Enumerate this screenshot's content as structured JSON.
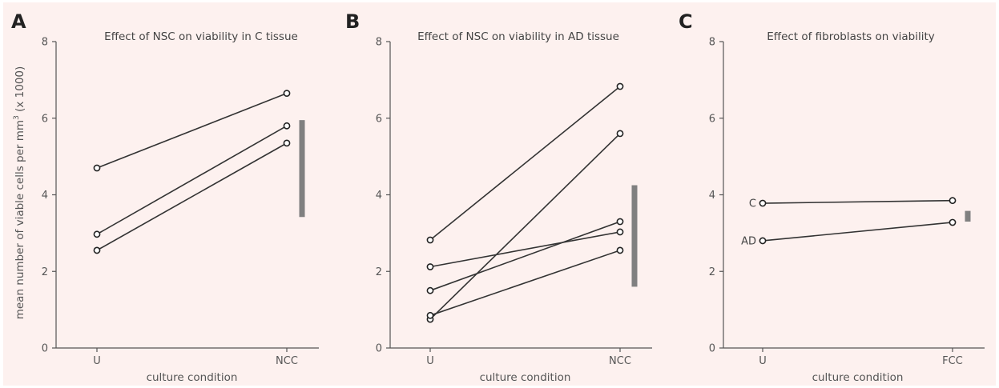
{
  "ylabel_main": "mean number of viable cells per mm",
  "ylabel_sup": "3",
  "ylabel_tail": " (x 1000)",
  "chart_data": [
    {
      "panel": "A",
      "type": "line",
      "title": "Effect of NSC on viability in C tissue",
      "xlabel": "culture condition",
      "categories": [
        "U",
        "NCC"
      ],
      "ylim": [
        0,
        8
      ],
      "yticks": [
        0,
        2,
        4,
        6,
        8
      ],
      "series": [
        {
          "values": [
            4.7,
            6.65
          ]
        },
        {
          "values": [
            2.97,
            5.8
          ]
        },
        {
          "values": [
            2.55,
            5.35
          ]
        }
      ],
      "range_bar": [
        3.42,
        5.95
      ]
    },
    {
      "panel": "B",
      "type": "line",
      "title": "Effect of NSC on viability in AD tissue",
      "xlabel": "culture condition",
      "categories": [
        "U",
        "NCC"
      ],
      "ylim": [
        0,
        8
      ],
      "yticks": [
        0,
        2,
        4,
        6,
        8
      ],
      "series": [
        {
          "values": [
            2.82,
            6.83
          ]
        },
        {
          "values": [
            0.75,
            5.6
          ]
        },
        {
          "values": [
            2.12,
            3.03
          ]
        },
        {
          "values": [
            1.5,
            3.3
          ]
        },
        {
          "values": [
            0.85,
            2.55
          ]
        }
      ],
      "range_bar": [
        1.6,
        4.25
      ]
    },
    {
      "panel": "C",
      "type": "line",
      "title": "Effect of fibroblasts on viability",
      "xlabel": "culture condition",
      "categories": [
        "U",
        "FCC"
      ],
      "ylim": [
        0,
        8
      ],
      "yticks": [
        0,
        2,
        4,
        6,
        8
      ],
      "series": [
        {
          "name": "C",
          "values": [
            3.78,
            3.85
          ]
        },
        {
          "name": "AD",
          "values": [
            2.8,
            3.28
          ]
        }
      ],
      "range_bar": [
        3.3,
        3.58
      ]
    }
  ]
}
